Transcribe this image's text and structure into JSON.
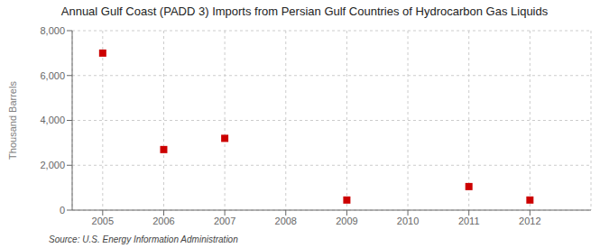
{
  "chart_data": {
    "type": "scatter",
    "title": "Annual Gulf Coast (PADD 3) Imports from Persian Gulf Countries of Hydrocarbon Gas Liquids",
    "ylabel": "Thousand Barrels",
    "annotation": "Source: U.S. Energy Information Administration",
    "x": [
      2005,
      2006,
      2007,
      2008,
      2009,
      2010,
      2011,
      2012
    ],
    "values": [
      7000,
      2700,
      3200,
      null,
      450,
      null,
      1050,
      450
    ],
    "color": "#cc0000",
    "marker": "square",
    "xlim": [
      2004.5,
      2013.0
    ],
    "xticks": [
      2005,
      2006,
      2007,
      2008,
      2009,
      2010,
      2011,
      2012
    ],
    "ylim": [
      0,
      8000
    ],
    "yticks": [
      0,
      {
        "value": 2000,
        "label": "2,000"
      },
      {
        "value": 4000,
        "label": "4,000"
      },
      {
        "value": 6000,
        "label": "6,000"
      },
      {
        "value": 8000,
        "label": "8,000"
      }
    ],
    "grid": true
  }
}
